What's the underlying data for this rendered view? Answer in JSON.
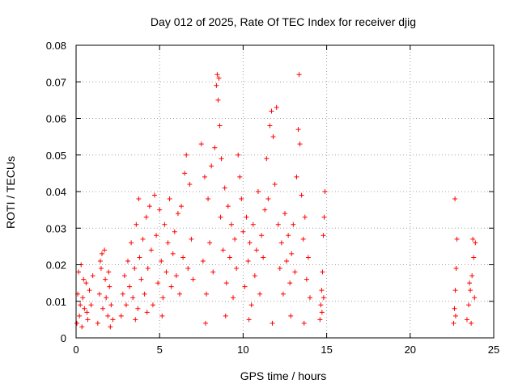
{
  "chart_data": {
    "type": "scatter",
    "title": "Day 012 of 2025, Rate Of TEC Index for receiver djig",
    "xlabel": "GPS time / hours",
    "ylabel": "ROTI / TECUs",
    "xlim": [
      0,
      25
    ],
    "ylim": [
      0,
      0.08
    ],
    "xticks": [
      0,
      5,
      10,
      15,
      20,
      25
    ],
    "yticks": [
      0,
      0.01,
      0.02,
      0.03,
      0.04,
      0.05,
      0.06,
      0.07,
      0.08
    ],
    "xtick_labels": [
      "0",
      "5",
      "10",
      "15",
      "20",
      "25"
    ],
    "ytick_labels": [
      "0",
      "0.01",
      "0.02",
      "0.03",
      "0.04",
      "0.05",
      "0.06",
      "0.07",
      "0.08"
    ],
    "grid": true,
    "marker": "+",
    "color": "#ff0000",
    "series": [
      {
        "points": [
          [
            0.05,
            0.004
          ],
          [
            0.1,
            0.012
          ],
          [
            0.15,
            0.018
          ],
          [
            0.2,
            0.006
          ],
          [
            0.25,
            0.009
          ],
          [
            0.3,
            0.02
          ],
          [
            0.35,
            0.003
          ],
          [
            0.4,
            0.011
          ],
          [
            0.5,
            0.008
          ],
          [
            0.6,
            0.015
          ],
          [
            0.7,
            0.005
          ],
          [
            0.8,
            0.013
          ],
          [
            0.9,
            0.009
          ],
          [
            1.0,
            0.017
          ],
          [
            0.45,
            0.016
          ],
          [
            0.65,
            0.007
          ],
          [
            1.3,
            0.004
          ],
          [
            1.4,
            0.012
          ],
          [
            1.5,
            0.019
          ],
          [
            1.55,
            0.023
          ],
          [
            1.6,
            0.008
          ],
          [
            1.7,
            0.024
          ],
          [
            1.8,
            0.011
          ],
          [
            1.9,
            0.006
          ],
          [
            2.0,
            0.014
          ],
          [
            2.1,
            0.009
          ],
          [
            2.2,
            0.005
          ],
          [
            1.45,
            0.021
          ],
          [
            1.75,
            0.016
          ],
          [
            1.95,
            0.018
          ],
          [
            2.05,
            0.003
          ],
          [
            2.7,
            0.006
          ],
          [
            2.8,
            0.012
          ],
          [
            2.9,
            0.017
          ],
          [
            3.0,
            0.009
          ],
          [
            3.1,
            0.021
          ],
          [
            3.2,
            0.014
          ],
          [
            3.3,
            0.026
          ],
          [
            3.4,
            0.011
          ],
          [
            3.5,
            0.019
          ],
          [
            3.6,
            0.031
          ],
          [
            3.7,
            0.008
          ],
          [
            3.75,
            0.038
          ],
          [
            3.8,
            0.022
          ],
          [
            3.9,
            0.016
          ],
          [
            4.0,
            0.027
          ],
          [
            4.1,
            0.012
          ],
          [
            4.2,
            0.033
          ],
          [
            4.3,
            0.019
          ],
          [
            4.4,
            0.036
          ],
          [
            4.5,
            0.024
          ],
          [
            4.6,
            0.009
          ],
          [
            4.7,
            0.039
          ],
          [
            4.8,
            0.028
          ],
          [
            4.9,
            0.015
          ],
          [
            5.0,
            0.035
          ],
          [
            5.1,
            0.021
          ],
          [
            5.2,
            0.011
          ],
          [
            5.3,
            0.031
          ],
          [
            5.4,
            0.018
          ],
          [
            5.5,
            0.026
          ],
          [
            5.6,
            0.038
          ],
          [
            5.7,
            0.014
          ],
          [
            5.8,
            0.023
          ],
          [
            5.9,
            0.029
          ],
          [
            6.0,
            0.017
          ],
          [
            6.1,
            0.034
          ],
          [
            6.2,
            0.012
          ],
          [
            6.3,
            0.036
          ],
          [
            6.4,
            0.022
          ],
          [
            6.5,
            0.045
          ],
          [
            6.6,
            0.05
          ],
          [
            6.7,
            0.019
          ],
          [
            6.8,
            0.042
          ],
          [
            6.9,
            0.027
          ],
          [
            7.0,
            0.016
          ],
          [
            3.55,
            0.005
          ],
          [
            4.25,
            0.007
          ],
          [
            5.15,
            0.006
          ],
          [
            7.5,
            0.053
          ],
          [
            7.6,
            0.021
          ],
          [
            7.7,
            0.044
          ],
          [
            7.8,
            0.012
          ],
          [
            7.9,
            0.038
          ],
          [
            8.0,
            0.026
          ],
          [
            8.1,
            0.047
          ],
          [
            8.2,
            0.018
          ],
          [
            8.3,
            0.052
          ],
          [
            8.4,
            0.069
          ],
          [
            8.45,
            0.072
          ],
          [
            8.5,
            0.065
          ],
          [
            8.55,
            0.071
          ],
          [
            8.6,
            0.058
          ],
          [
            8.65,
            0.033
          ],
          [
            8.7,
            0.049
          ],
          [
            8.8,
            0.024
          ],
          [
            8.9,
            0.041
          ],
          [
            9.0,
            0.015
          ],
          [
            9.1,
            0.036
          ],
          [
            9.2,
            0.022
          ],
          [
            9.3,
            0.031
          ],
          [
            9.4,
            0.011
          ],
          [
            9.5,
            0.027
          ],
          [
            9.6,
            0.019
          ],
          [
            9.7,
            0.05
          ],
          [
            9.8,
            0.044
          ],
          [
            9.9,
            0.038
          ],
          [
            10.0,
            0.029
          ],
          [
            10.1,
            0.014
          ],
          [
            10.2,
            0.033
          ],
          [
            10.3,
            0.021
          ],
          [
            10.4,
            0.026
          ],
          [
            10.5,
            0.009
          ],
          [
            10.6,
            0.031
          ],
          [
            10.7,
            0.017
          ],
          [
            10.8,
            0.024
          ],
          [
            10.9,
            0.04
          ],
          [
            11.0,
            0.012
          ],
          [
            11.1,
            0.028
          ],
          [
            11.2,
            0.022
          ],
          [
            11.3,
            0.035
          ],
          [
            11.4,
            0.049
          ],
          [
            11.5,
            0.038
          ],
          [
            11.6,
            0.058
          ],
          [
            11.7,
            0.062
          ],
          [
            11.8,
            0.055
          ],
          [
            11.9,
            0.042
          ],
          [
            12.0,
            0.063
          ],
          [
            12.1,
            0.031
          ],
          [
            12.2,
            0.019
          ],
          [
            12.3,
            0.026
          ],
          [
            12.4,
            0.012
          ],
          [
            12.5,
            0.034
          ],
          [
            12.6,
            0.021
          ],
          [
            12.7,
            0.028
          ],
          [
            12.8,
            0.015
          ],
          [
            12.9,
            0.023
          ],
          [
            13.0,
            0.031
          ],
          [
            13.1,
            0.018
          ],
          [
            13.2,
            0.044
          ],
          [
            13.3,
            0.057
          ],
          [
            13.35,
            0.072
          ],
          [
            13.4,
            0.053
          ],
          [
            13.5,
            0.039
          ],
          [
            13.6,
            0.027
          ],
          [
            13.7,
            0.033
          ],
          [
            13.8,
            0.016
          ],
          [
            13.9,
            0.022
          ],
          [
            14.0,
            0.011
          ],
          [
            7.75,
            0.004
          ],
          [
            8.95,
            0.006
          ],
          [
            10.35,
            0.005
          ],
          [
            11.75,
            0.004
          ],
          [
            12.85,
            0.006
          ],
          [
            13.65,
            0.004
          ],
          [
            14.6,
            0.005
          ],
          [
            14.65,
            0.009
          ],
          [
            14.7,
            0.013
          ],
          [
            14.75,
            0.018
          ],
          [
            14.8,
            0.028
          ],
          [
            14.85,
            0.033
          ],
          [
            14.9,
            0.04
          ],
          [
            14.72,
            0.007
          ],
          [
            14.82,
            0.011
          ],
          [
            22.6,
            0.004
          ],
          [
            22.65,
            0.008
          ],
          [
            22.7,
            0.013
          ],
          [
            22.75,
            0.019
          ],
          [
            22.8,
            0.027
          ],
          [
            22.68,
            0.038
          ],
          [
            22.72,
            0.006
          ],
          [
            23.4,
            0.005
          ],
          [
            23.5,
            0.009
          ],
          [
            23.6,
            0.013
          ],
          [
            23.7,
            0.017
          ],
          [
            23.75,
            0.027
          ],
          [
            23.8,
            0.022
          ],
          [
            23.85,
            0.011
          ],
          [
            23.9,
            0.026
          ],
          [
            23.65,
            0.004
          ],
          [
            23.55,
            0.015
          ]
        ]
      }
    ]
  }
}
